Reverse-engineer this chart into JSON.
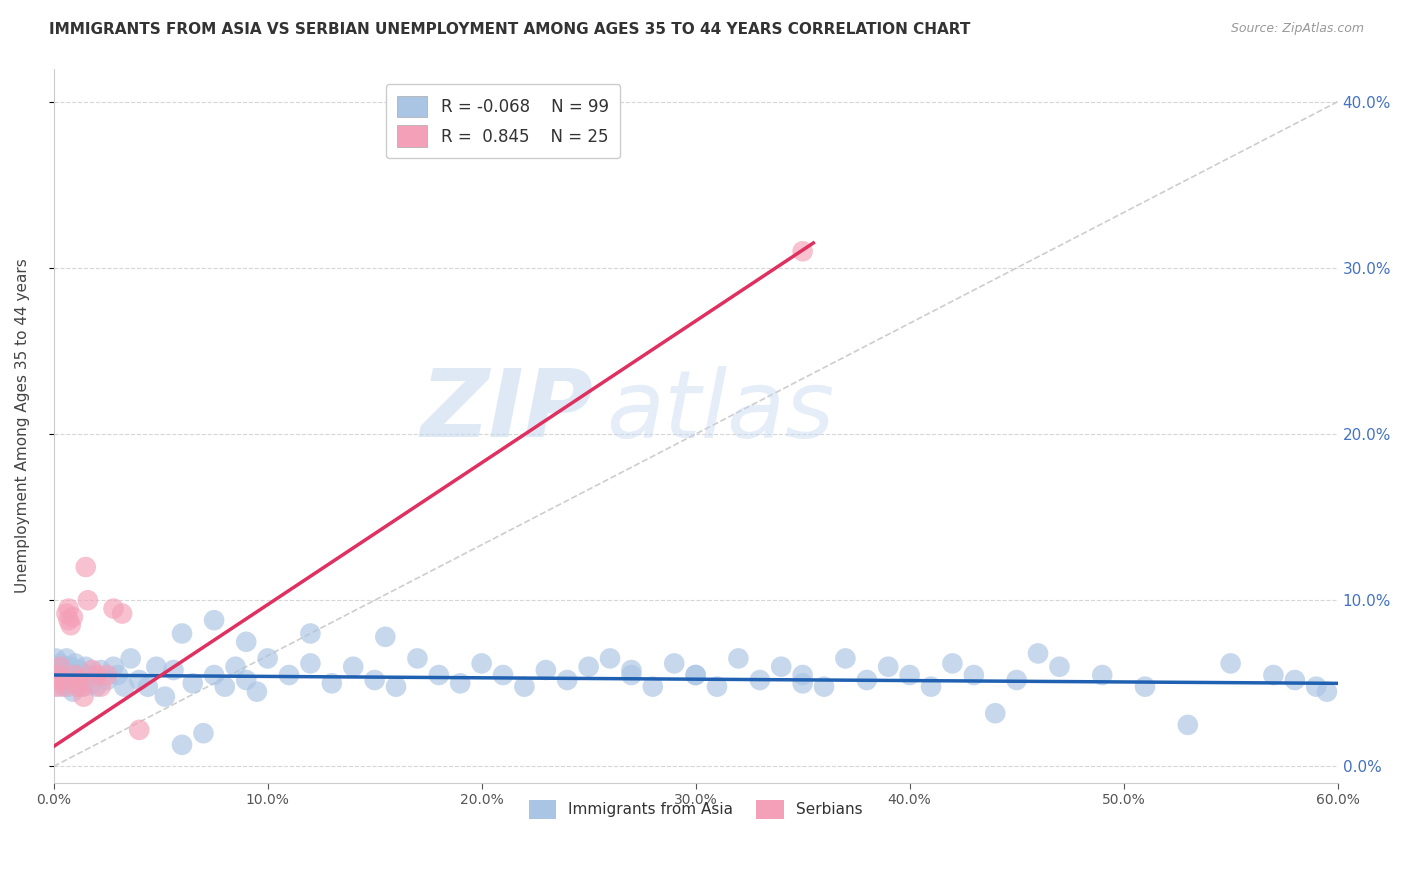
{
  "title": "IMMIGRANTS FROM ASIA VS SERBIAN UNEMPLOYMENT AMONG AGES 35 TO 44 YEARS CORRELATION CHART",
  "source": "Source: ZipAtlas.com",
  "ylabel": "Unemployment Among Ages 35 to 44 years",
  "xlabel_blue": "Immigrants from Asia",
  "xlabel_pink": "Serbians",
  "legend_blue_R": "-0.068",
  "legend_blue_N": "99",
  "legend_pink_R": "0.845",
  "legend_pink_N": "25",
  "xlim": [
    0.0,
    0.6
  ],
  "ylim": [
    -0.01,
    0.42
  ],
  "yticks": [
    0.0,
    0.1,
    0.2,
    0.3,
    0.4
  ],
  "xticks": [
    0.0,
    0.1,
    0.2,
    0.3,
    0.4,
    0.5,
    0.6
  ],
  "bg_color": "#ffffff",
  "scatter_blue_color": "#aac4e4",
  "scatter_pink_color": "#f4a0b8",
  "trend_blue_color": "#2060b0",
  "trend_pink_color": "#e03060",
  "ref_line_color": "#c8c8c8",
  "grid_color": "#cccccc",
  "watermark_zip": "ZIP",
  "watermark_atlas": "atlas",
  "blue_scatter_x": [
    0.001,
    0.002,
    0.002,
    0.003,
    0.003,
    0.004,
    0.004,
    0.005,
    0.005,
    0.006,
    0.006,
    0.007,
    0.007,
    0.008,
    0.008,
    0.009,
    0.01,
    0.01,
    0.011,
    0.012,
    0.013,
    0.014,
    0.015,
    0.016,
    0.018,
    0.02,
    0.022,
    0.025,
    0.028,
    0.03,
    0.033,
    0.036,
    0.04,
    0.044,
    0.048,
    0.052,
    0.056,
    0.06,
    0.065,
    0.07,
    0.075,
    0.08,
    0.085,
    0.09,
    0.095,
    0.1,
    0.11,
    0.12,
    0.13,
    0.14,
    0.15,
    0.16,
    0.17,
    0.18,
    0.19,
    0.2,
    0.21,
    0.22,
    0.23,
    0.24,
    0.25,
    0.26,
    0.27,
    0.28,
    0.29,
    0.3,
    0.31,
    0.32,
    0.33,
    0.34,
    0.35,
    0.36,
    0.37,
    0.38,
    0.39,
    0.4,
    0.41,
    0.42,
    0.43,
    0.45,
    0.46,
    0.47,
    0.49,
    0.51,
    0.53,
    0.55,
    0.57,
    0.58,
    0.59,
    0.595,
    0.06,
    0.075,
    0.09,
    0.12,
    0.155,
    0.27,
    0.3,
    0.35,
    0.44
  ],
  "blue_scatter_y": [
    0.065,
    0.055,
    0.06,
    0.048,
    0.062,
    0.055,
    0.058,
    0.05,
    0.06,
    0.052,
    0.065,
    0.048,
    0.058,
    0.052,
    0.06,
    0.045,
    0.055,
    0.062,
    0.05,
    0.058,
    0.052,
    0.048,
    0.06,
    0.055,
    0.05,
    0.048,
    0.058,
    0.052,
    0.06,
    0.055,
    0.048,
    0.065,
    0.052,
    0.048,
    0.06,
    0.042,
    0.058,
    0.013,
    0.05,
    0.02,
    0.055,
    0.048,
    0.06,
    0.052,
    0.045,
    0.065,
    0.055,
    0.062,
    0.05,
    0.06,
    0.052,
    0.048,
    0.065,
    0.055,
    0.05,
    0.062,
    0.055,
    0.048,
    0.058,
    0.052,
    0.06,
    0.065,
    0.055,
    0.048,
    0.062,
    0.055,
    0.048,
    0.065,
    0.052,
    0.06,
    0.055,
    0.048,
    0.065,
    0.052,
    0.06,
    0.055,
    0.048,
    0.062,
    0.055,
    0.052,
    0.068,
    0.06,
    0.055,
    0.048,
    0.025,
    0.062,
    0.055,
    0.052,
    0.048,
    0.045,
    0.08,
    0.088,
    0.075,
    0.08,
    0.078,
    0.058,
    0.055,
    0.05,
    0.032
  ],
  "pink_scatter_x": [
    0.001,
    0.002,
    0.003,
    0.004,
    0.005,
    0.006,
    0.007,
    0.007,
    0.008,
    0.009,
    0.01,
    0.011,
    0.012,
    0.013,
    0.014,
    0.015,
    0.016,
    0.018,
    0.02,
    0.022,
    0.025,
    0.028,
    0.032,
    0.04,
    0.35
  ],
  "pink_scatter_y": [
    0.048,
    0.055,
    0.06,
    0.052,
    0.048,
    0.092,
    0.088,
    0.095,
    0.085,
    0.09,
    0.055,
    0.048,
    0.052,
    0.048,
    0.042,
    0.12,
    0.1,
    0.058,
    0.055,
    0.048,
    0.055,
    0.095,
    0.092,
    0.022,
    0.31
  ],
  "pink_trend_x": [
    0.0,
    0.355
  ],
  "pink_trend_y": [
    0.012,
    0.315
  ],
  "blue_trend_x": [
    0.0,
    0.6
  ],
  "blue_trend_y": [
    0.055,
    0.05
  ]
}
